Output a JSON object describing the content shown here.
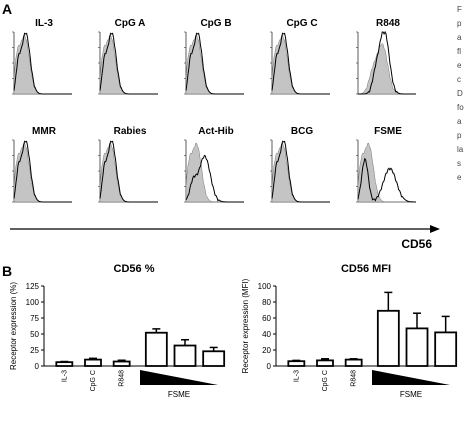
{
  "panel_a": {
    "letter": "A",
    "axis_label": "CD56",
    "histograms": [
      {
        "label": "IL-3",
        "shape": "left",
        "overlay": "overlap"
      },
      {
        "label": "CpG A",
        "shape": "left",
        "overlay": "overlap"
      },
      {
        "label": "CpG B",
        "shape": "left",
        "overlay": "overlap"
      },
      {
        "label": "CpG C",
        "shape": "left",
        "overlay": "overlap"
      },
      {
        "label": "R848",
        "shape": "mid",
        "overlay": "tall-shift"
      },
      {
        "label": "MMR",
        "shape": "left",
        "overlay": "overlap"
      },
      {
        "label": "Rabies",
        "shape": "left",
        "overlay": "overlap"
      },
      {
        "label": "Act-Hib",
        "shape": "left",
        "overlay": "shift"
      },
      {
        "label": "BCG",
        "shape": "left",
        "overlay": "overlap"
      },
      {
        "label": "FSME",
        "shape": "left",
        "overlay": "bimodal"
      }
    ]
  },
  "panel_b": {
    "letter": "B",
    "ylabel": "Receptor expression (%)",
    "ylabel_mfi": "Receptor expression (MFI)",
    "fsme_label": "FSME"
  },
  "side_text": [
    "F",
    "p",
    "a",
    "fl",
    "e",
    "c",
    "D",
    "fo",
    "a",
    "p",
    "la",
    "s",
    "e"
  ],
  "chart_data": [
    {
      "type": "bar",
      "title": "CD56 %",
      "categories": [
        "IL-3",
        "CpG C",
        "R848",
        "",
        "",
        ""
      ],
      "series": [
        {
          "values": [
            6,
            10,
            7,
            52,
            32,
            23
          ]
        }
      ],
      "errors": [
        1,
        2,
        2,
        6,
        9,
        6
      ],
      "ylabel": "Receptor expression (%)",
      "ylim": [
        0,
        125
      ],
      "yticks": [
        0,
        25,
        50,
        75,
        100,
        125
      ],
      "group_label": "FSME"
    },
    {
      "type": "bar",
      "title": "CD56 MFI",
      "categories": [
        "IL-3",
        "CpG C",
        "R848",
        "",
        "",
        ""
      ],
      "series": [
        {
          "values": [
            6,
            7,
            8,
            69,
            47,
            42
          ]
        }
      ],
      "errors": [
        1,
        2,
        1,
        23,
        19,
        20
      ],
      "ylabel": "Receptor expression (MFI)",
      "ylim": [
        0,
        100
      ],
      "yticks": [
        0,
        20,
        40,
        60,
        80,
        100
      ],
      "group_label": "FSME"
    }
  ]
}
